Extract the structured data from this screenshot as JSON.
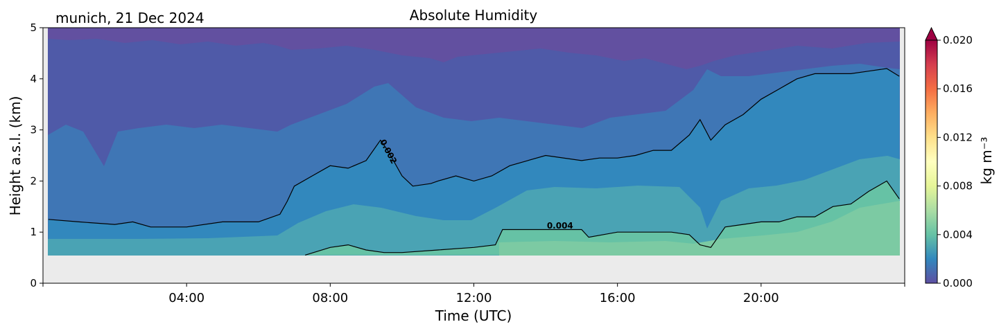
{
  "chart_data": {
    "type": "heatmap",
    "title": "Absolute Humidity",
    "subtitle": "munich, 21 Dec 2024",
    "xlabel": "Time (UTC)",
    "ylabel": "Height a.s.l. (km)",
    "x_range_hours": [
      0,
      24
    ],
    "xlim": [
      "00:00",
      "24:00"
    ],
    "xticks": [
      "04:00",
      "08:00",
      "12:00",
      "16:00",
      "20:00"
    ],
    "ylim": [
      0,
      5
    ],
    "yticks": [
      "0",
      "1",
      "2",
      "3",
      "4",
      "5"
    ],
    "colorbar": {
      "label": "kg m⁻³",
      "range": [
        0.0,
        0.02
      ],
      "extend": "max",
      "ticks": [
        "0.000",
        "0.004",
        "0.008",
        "0.012",
        "0.016",
        "0.020"
      ],
      "colors": [
        "#5e4fa2",
        "#3288bd",
        "#66c2a5",
        "#abdda4",
        "#e6f598",
        "#ffffbf",
        "#fee08b",
        "#fdae61",
        "#f46d43",
        "#d53e4f",
        "#9e0142"
      ]
    },
    "contour_labels": [
      "0.002",
      "0.004"
    ],
    "contours": [
      {
        "level": 0.002,
        "label": "0.002",
        "t": [
          0.15,
          1,
          2,
          2.5,
          3,
          4,
          5,
          6,
          6.6,
          6.8,
          7,
          7.5,
          8,
          8.5,
          9,
          9.4,
          9.6,
          10,
          10.3,
          10.8,
          11,
          11.5,
          12,
          12.5,
          13,
          13.5,
          14,
          15,
          15.5,
          16,
          16.5,
          17,
          17.5,
          18,
          18.3,
          18.6,
          19,
          19.5,
          20,
          20.5,
          21,
          21.5,
          22,
          22.5,
          23,
          23.5,
          23.85
        ],
        "h": [
          1.25,
          1.2,
          1.15,
          1.2,
          1.1,
          1.1,
          1.2,
          1.2,
          1.35,
          1.6,
          1.9,
          2.1,
          2.3,
          2.25,
          2.4,
          2.8,
          2.6,
          2.1,
          1.9,
          1.95,
          2.0,
          2.1,
          2.0,
          2.1,
          2.3,
          2.4,
          2.5,
          2.4,
          2.45,
          2.45,
          2.5,
          2.6,
          2.6,
          2.9,
          3.2,
          2.8,
          3.1,
          3.3,
          3.6,
          3.8,
          4.0,
          4.1,
          4.1,
          4.1,
          4.15,
          4.2,
          4.05
        ]
      },
      {
        "level": 0.004,
        "label": "0.004",
        "t": [
          7.3,
          8,
          8.5,
          9,
          9.5,
          10,
          11,
          12,
          12.6,
          12.8,
          13,
          14,
          15,
          15.2,
          16,
          17,
          17.5,
          18,
          18.3,
          18.6,
          19,
          19.5,
          20,
          20.5,
          21,
          21.5,
          22,
          22.5,
          23,
          23.5,
          23.85
        ],
        "h": [
          0.55,
          0.7,
          0.75,
          0.65,
          0.6,
          0.6,
          0.65,
          0.7,
          0.75,
          1.05,
          1.05,
          1.05,
          1.05,
          0.9,
          1.0,
          1.0,
          1.0,
          0.95,
          0.75,
          0.7,
          1.1,
          1.15,
          1.2,
          1.2,
          1.3,
          1.3,
          1.5,
          1.55,
          1.8,
          2.0,
          1.65
        ]
      }
    ],
    "data_start_height_km": 0.55,
    "data_start_time_h": 0.15,
    "data_end_time_h": 23.85
  }
}
